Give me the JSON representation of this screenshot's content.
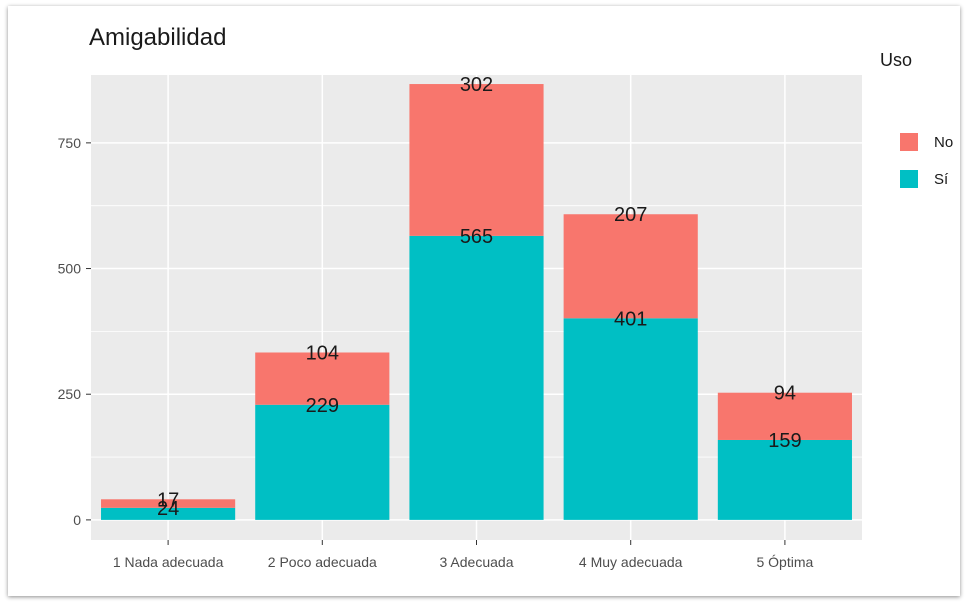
{
  "chart_data": {
    "type": "bar",
    "stacked": true,
    "title": "Amigabilidad",
    "xlabel": "",
    "ylabel": "",
    "categories": [
      "1 Nada adecuada",
      "2 Poco adecuada",
      "3 Adecuada",
      "4 Muy adecuada",
      "5 Óptima"
    ],
    "series": [
      {
        "name": "Sí",
        "values": [
          24,
          229,
          565,
          401,
          159
        ],
        "color": "#00BFC4"
      },
      {
        "name": "No",
        "values": [
          17,
          104,
          302,
          207,
          94
        ],
        "color": "#F8766D"
      }
    ],
    "yticks": [
      0,
      250,
      500,
      750
    ],
    "ylim": [
      -40,
      885
    ],
    "grid": true,
    "legend": {
      "title": "Uso",
      "placement": "right",
      "entries": [
        {
          "label": "No",
          "color": "#F8766D"
        },
        {
          "label": "Sí",
          "color": "#00BFC4"
        }
      ]
    },
    "panel_background": "#EBEBEB"
  }
}
